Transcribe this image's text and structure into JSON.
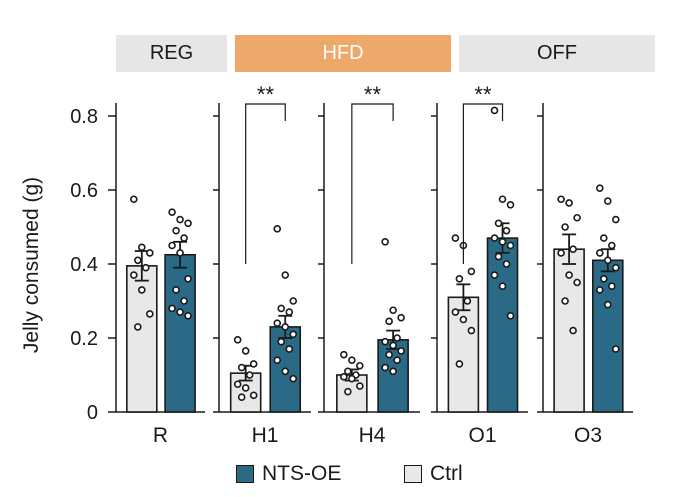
{
  "chart_data": {
    "type": "bar",
    "title": "",
    "ylabel": "Jelly consumed (g)",
    "xlabel": "",
    "ylim": [
      0,
      0.85
    ],
    "yticks": [
      {
        "value": 0,
        "label": "0"
      },
      {
        "value": 0.2,
        "label": "0.2"
      },
      {
        "value": 0.4,
        "label": "0.4"
      },
      {
        "value": 0.6,
        "label": "0.6"
      },
      {
        "value": 0.8,
        "label": "0.8"
      }
    ],
    "phases": [
      {
        "label": "REG",
        "color": "#e6e6e8",
        "text_color": "#1a1a1a"
      },
      {
        "label": "HFD",
        "color": "#eda86a",
        "text_color": "#ffffff"
      },
      {
        "label": "OFF",
        "color": "#e6e6e8",
        "text_color": "#1a1a1a"
      }
    ],
    "colors": {
      "Ctrl": "#e8e8e8",
      "NTS-OE": "#2a6a87"
    },
    "legend": [
      {
        "name": "NTS-OE",
        "color": "#2a6a87"
      },
      {
        "name": "Ctrl",
        "color": "#e8e8e8"
      }
    ],
    "series_order": [
      "Ctrl",
      "NTS-OE"
    ],
    "groups": [
      {
        "label": "R",
        "significance": "",
        "Ctrl": {
          "mean": 0.395,
          "sem": 0.04,
          "points": [
            0.575,
            0.445,
            0.43,
            0.41,
            0.39,
            0.37,
            0.33,
            0.265,
            0.23
          ]
        },
        "NTS-OE": {
          "mean": 0.425,
          "sem": 0.035,
          "points": [
            0.54,
            0.52,
            0.51,
            0.49,
            0.47,
            0.45,
            0.43,
            0.36,
            0.33,
            0.3,
            0.28,
            0.27,
            0.26
          ]
        }
      },
      {
        "label": "H1",
        "significance": "**",
        "Ctrl": {
          "mean": 0.105,
          "sem": 0.02,
          "points": [
            0.195,
            0.165,
            0.13,
            0.12,
            0.1,
            0.075,
            0.065,
            0.045,
            0.04
          ]
        },
        "NTS-OE": {
          "mean": 0.23,
          "sem": 0.03,
          "points": [
            0.495,
            0.37,
            0.3,
            0.28,
            0.27,
            0.24,
            0.23,
            0.21,
            0.19,
            0.17,
            0.14,
            0.11,
            0.09
          ]
        }
      },
      {
        "label": "H4",
        "significance": "**",
        "Ctrl": {
          "mean": 0.1,
          "sem": 0.015,
          "points": [
            0.155,
            0.14,
            0.125,
            0.11,
            0.1,
            0.095,
            0.09,
            0.07,
            0.055
          ]
        },
        "NTS-OE": {
          "mean": 0.195,
          "sem": 0.025,
          "points": [
            0.46,
            0.275,
            0.255,
            0.245,
            0.2,
            0.19,
            0.18,
            0.165,
            0.155,
            0.14,
            0.12,
            0.11
          ]
        }
      },
      {
        "label": "O1",
        "significance": "**",
        "Ctrl": {
          "mean": 0.31,
          "sem": 0.035,
          "points": [
            0.47,
            0.45,
            0.38,
            0.36,
            0.3,
            0.27,
            0.25,
            0.22,
            0.13
          ]
        },
        "NTS-OE": {
          "mean": 0.47,
          "sem": 0.04,
          "points": [
            0.815,
            0.575,
            0.56,
            0.51,
            0.49,
            0.47,
            0.46,
            0.45,
            0.42,
            0.4,
            0.37,
            0.34,
            0.26
          ]
        }
      },
      {
        "label": "O3",
        "significance": "",
        "Ctrl": {
          "mean": 0.44,
          "sem": 0.04,
          "points": [
            0.575,
            0.565,
            0.525,
            0.5,
            0.44,
            0.43,
            0.37,
            0.35,
            0.3,
            0.22
          ]
        },
        "NTS-OE": {
          "mean": 0.41,
          "sem": 0.03,
          "points": [
            0.605,
            0.57,
            0.52,
            0.47,
            0.45,
            0.43,
            0.41,
            0.39,
            0.36,
            0.34,
            0.33,
            0.29,
            0.17
          ]
        }
      }
    ]
  }
}
